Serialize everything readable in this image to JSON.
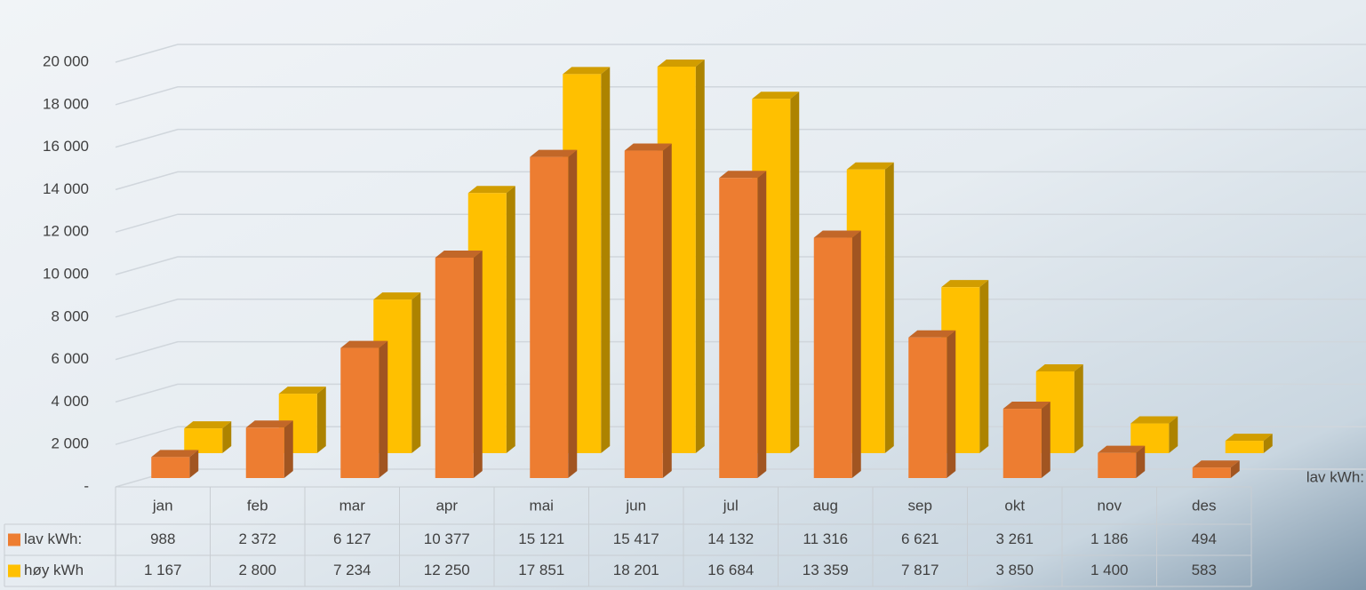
{
  "chart_data": {
    "type": "bar3d",
    "categories": [
      "jan",
      "feb",
      "mar",
      "apr",
      "mai",
      "jun",
      "jul",
      "aug",
      "sep",
      "okt",
      "nov",
      "des"
    ],
    "series": [
      {
        "name": "lav kWh:",
        "color": "#ed7d31",
        "values": [
          988,
          2372,
          6127,
          10377,
          15121,
          15417,
          14132,
          11316,
          6621,
          3261,
          1186,
          494
        ],
        "value_labels": [
          "988",
          "2 372",
          "6 127",
          "10 377",
          "15 121",
          "15 417",
          "14 132",
          "11 316",
          "6 621",
          "3 261",
          "1 186",
          "494"
        ]
      },
      {
        "name": "høy kWh",
        "color": "#ffc000",
        "values": [
          1167,
          2800,
          7234,
          12250,
          17851,
          18201,
          16684,
          13359,
          7817,
          3850,
          1400,
          583
        ],
        "value_labels": [
          "1 167",
          "2 800",
          "7 234",
          "12 250",
          "17 851",
          "18 201",
          "16 684",
          "13 359",
          "7 817",
          "3 850",
          "1 400",
          "583"
        ]
      }
    ],
    "series_axis_label": "lav kWh:",
    "ylim": [
      0,
      20000
    ],
    "yticks": [
      {
        "value": 0,
        "label": "-"
      },
      {
        "value": 2000,
        "label": "2 000"
      },
      {
        "value": 4000,
        "label": "4 000"
      },
      {
        "value": 6000,
        "label": "6 000"
      },
      {
        "value": 8000,
        "label": "8 000"
      },
      {
        "value": 10000,
        "label": "10 000"
      },
      {
        "value": 12000,
        "label": "12 000"
      },
      {
        "value": 14000,
        "label": "14 000"
      },
      {
        "value": 16000,
        "label": "16 000"
      },
      {
        "value": 18000,
        "label": "18 000"
      },
      {
        "value": 20000,
        "label": "20 000"
      }
    ],
    "grid": true
  }
}
